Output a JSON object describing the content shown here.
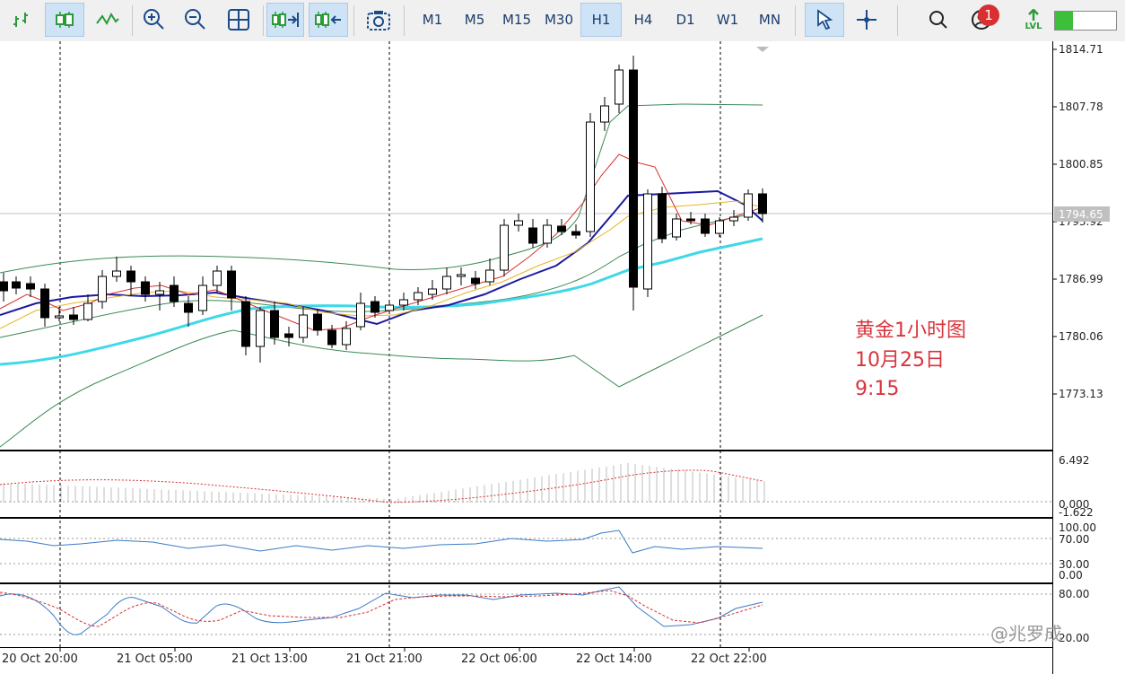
{
  "toolbar": {
    "timeframes": [
      "M1",
      "M5",
      "M15",
      "M30",
      "H1",
      "H4",
      "D1",
      "W1",
      "MN"
    ],
    "active_timeframe": "H1",
    "notification_count": "1",
    "lvl_label": "LVL"
  },
  "chart": {
    "price_labels": [
      "1814.71",
      "1807.78",
      "1800.85",
      "1793.92",
      "1786.99",
      "1780.06",
      "1773.13"
    ],
    "current_price": "1794.65",
    "time_labels": [
      "20 Oct 20:00",
      "21 Oct 05:00",
      "21 Oct 13:00",
      "21 Oct 21:00",
      "22 Oct 06:00",
      "22 Oct 14:00",
      "22 Oct 22:00"
    ],
    "ind1_labels": [
      "6.492",
      "0.000",
      "-1.622"
    ],
    "ind2_labels": [
      "100.00",
      "70.00",
      "30.00",
      "0.00"
    ],
    "ind3_labels": [
      "80.00",
      "20.00"
    ]
  },
  "annotation": {
    "line1": "黄金1小时图",
    "line2": "10月25日",
    "line3": "9:15"
  },
  "watermark": "@兆罗成",
  "colors": {
    "bull_candle": "#ffffff",
    "bear_candle": "#000000",
    "ma_thin": "#d83030",
    "ma_yellow": "#e6b422",
    "ma_blue": "#1a1aa0",
    "ma_cyan": "#3fd8e8",
    "bollinger": "#3a8a55",
    "annotation": "#d8343c"
  }
}
